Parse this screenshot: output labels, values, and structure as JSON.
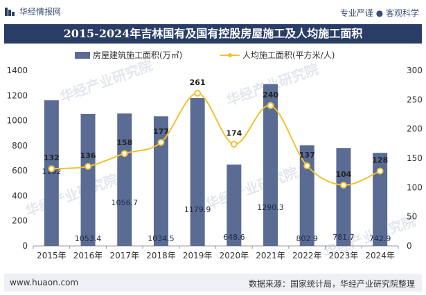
{
  "header": {
    "brand": "华经情报网",
    "tagline": "专业严谨 ● 客观科学",
    "title": "2015-2024年吉林国有及国有控股房屋施工及人均施工面积"
  },
  "footer": {
    "website": "www.huaon.com",
    "source": "数据来源：国家统计局，华经产业研究院整理"
  },
  "watermark": "华经产业研究院",
  "colors": {
    "bar": "#5a6b94",
    "line": "#f2c12e",
    "title_bg": "#2a3d66"
  },
  "chart_data": {
    "type": "bar",
    "categories": [
      "2015年",
      "2016年",
      "2017年",
      "2018年",
      "2019年",
      "2020年",
      "2021年",
      "2022年",
      "2023年",
      "2024年"
    ],
    "series": [
      {
        "name": "房屋建筑施工面积(万㎡)",
        "type": "bar",
        "axis": "left",
        "values": [
          1162,
          1053.4,
          1056.7,
          1034.5,
          1179.9,
          648.6,
          1290.3,
          802.9,
          781.7,
          742.9
        ],
        "labels": [
          "1162",
          "1053.4",
          "1056.7",
          "1034.5",
          "1179.9",
          "648.6",
          "1290.3",
          "802.9",
          "781.7",
          "742.9"
        ]
      },
      {
        "name": "人均施工面积(平方米/人)",
        "type": "line",
        "axis": "right",
        "values": [
          132,
          136,
          158,
          177,
          261,
          174,
          240,
          137,
          104,
          128
        ],
        "labels": [
          "132",
          "136",
          "158",
          "177",
          "261",
          "174",
          "240",
          "137",
          "104",
          "128"
        ]
      }
    ],
    "y_left": {
      "min": 0,
      "max": 1400,
      "ticks": [
        "0",
        "200",
        "400",
        "600",
        "800",
        "1000",
        "1200",
        "1400"
      ]
    },
    "y_right": {
      "min": 0,
      "max": 300,
      "ticks": [
        "0",
        "50",
        "100",
        "150",
        "200",
        "250",
        "300"
      ]
    },
    "legend_position": "top-center"
  }
}
